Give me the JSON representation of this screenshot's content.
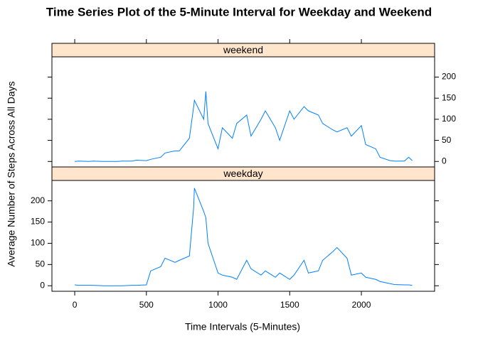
{
  "chart_data": {
    "type": "line",
    "title": "Time Series Plot of the 5-Minute Interval for Weekday and Weekend",
    "xlabel": "Time Intervals (5-Minutes)",
    "ylabel": "Average Number of Steps Across All Days",
    "x": [
      0,
      30,
      100,
      130,
      200,
      230,
      300,
      330,
      400,
      430,
      500,
      530,
      600,
      630,
      700,
      730,
      800,
      830,
      835,
      900,
      915,
      930,
      1000,
      1030,
      1100,
      1130,
      1200,
      1230,
      1300,
      1330,
      1400,
      1430,
      1500,
      1530,
      1600,
      1630,
      1700,
      1730,
      1800,
      1830,
      1900,
      1930,
      2000,
      2030,
      2100,
      2130,
      2200,
      2230,
      2300,
      2330,
      2355
    ],
    "series": [
      {
        "name": "weekend",
        "color": "#0080ff",
        "values": [
          0,
          1,
          0,
          1,
          0,
          0,
          0,
          1,
          1,
          3,
          2,
          5,
          10,
          20,
          25,
          25,
          55,
          130,
          145,
          100,
          166,
          90,
          30,
          80,
          55,
          90,
          110,
          60,
          100,
          120,
          80,
          50,
          120,
          100,
          130,
          120,
          110,
          90,
          75,
          70,
          80,
          60,
          85,
          40,
          30,
          10,
          2,
          1,
          1,
          10,
          2
        ]
      },
      {
        "name": "weekday",
        "color": "#0080ff",
        "values": [
          2,
          1,
          1,
          1,
          0,
          0,
          0,
          0,
          1,
          1,
          2,
          35,
          45,
          65,
          55,
          60,
          70,
          185,
          230,
          175,
          160,
          100,
          30,
          25,
          20,
          15,
          60,
          40,
          25,
          35,
          20,
          30,
          15,
          25,
          60,
          30,
          35,
          60,
          80,
          90,
          65,
          25,
          30,
          20,
          15,
          10,
          5,
          3,
          2,
          2,
          1
        ]
      }
    ],
    "xlim": [
      -159,
      2511
    ],
    "xticks": [
      0,
      500,
      1000,
      1500,
      2000
    ],
    "ylim": [
      -13,
      248
    ],
    "yticks": [
      0,
      50,
      100,
      150,
      200
    ],
    "strip_color": "#ffe5cc"
  }
}
